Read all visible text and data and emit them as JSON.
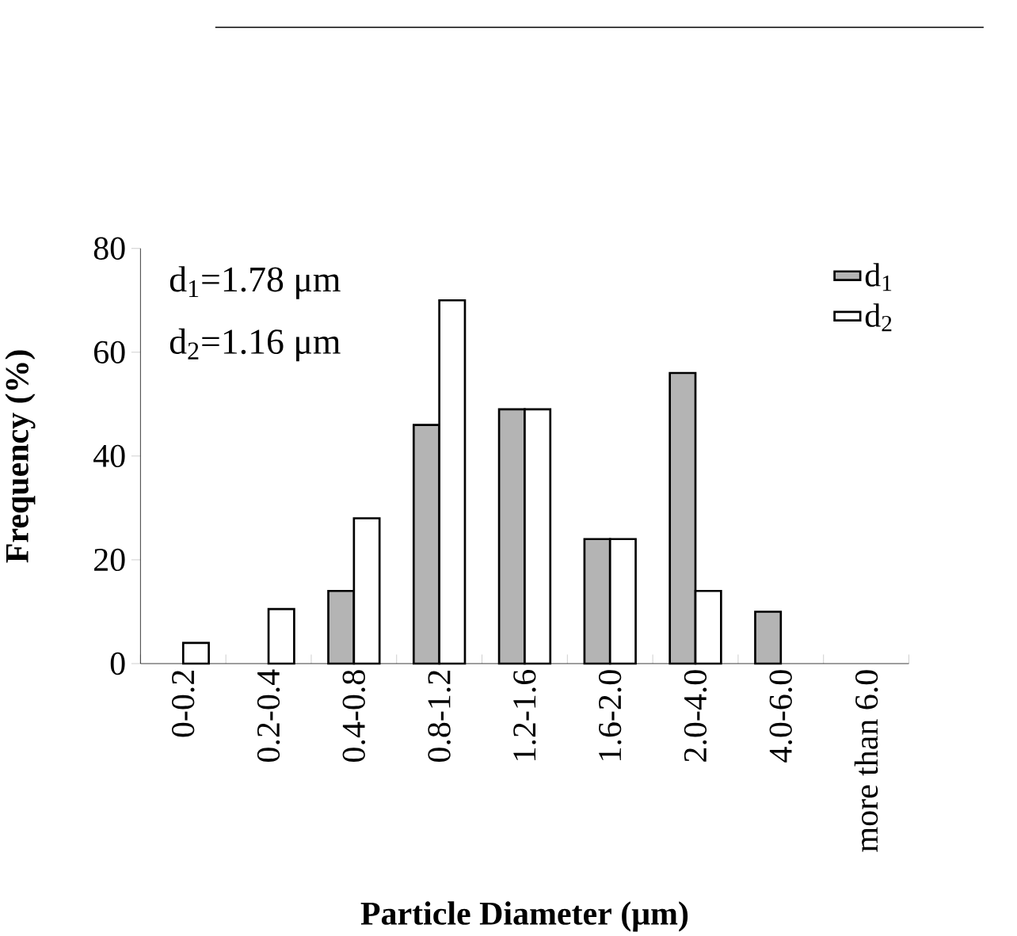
{
  "chart_data": {
    "type": "bar",
    "xlabel": "Particle Diameter (μm)",
    "ylabel": "Frequency (%)",
    "categories": [
      "0-0.2",
      "0.2-0.4",
      "0.4-0.8",
      "0.8-1.2",
      "1.2-1.6",
      "1.6-2.0",
      "2.0-4.0",
      "4.0-6.0",
      "more than 6.0"
    ],
    "series": [
      {
        "name": "d$_{1}$",
        "color": "#b4b4b4",
        "values": [
          null,
          null,
          14,
          46,
          49,
          24,
          56,
          10,
          null
        ]
      },
      {
        "name": "d$_{2}$",
        "color": "#ffffff",
        "values": [
          4,
          10.5,
          28,
          70,
          49,
          24,
          14,
          null,
          null
        ]
      }
    ],
    "ylim": [
      0,
      80
    ],
    "yticks": [
      0,
      20,
      40,
      60,
      80
    ],
    "annotations": [
      "d$_{1}$=1.78 μm",
      "d$_{2}$=1.16 μm"
    ],
    "legend": "top right",
    "grid": false
  }
}
